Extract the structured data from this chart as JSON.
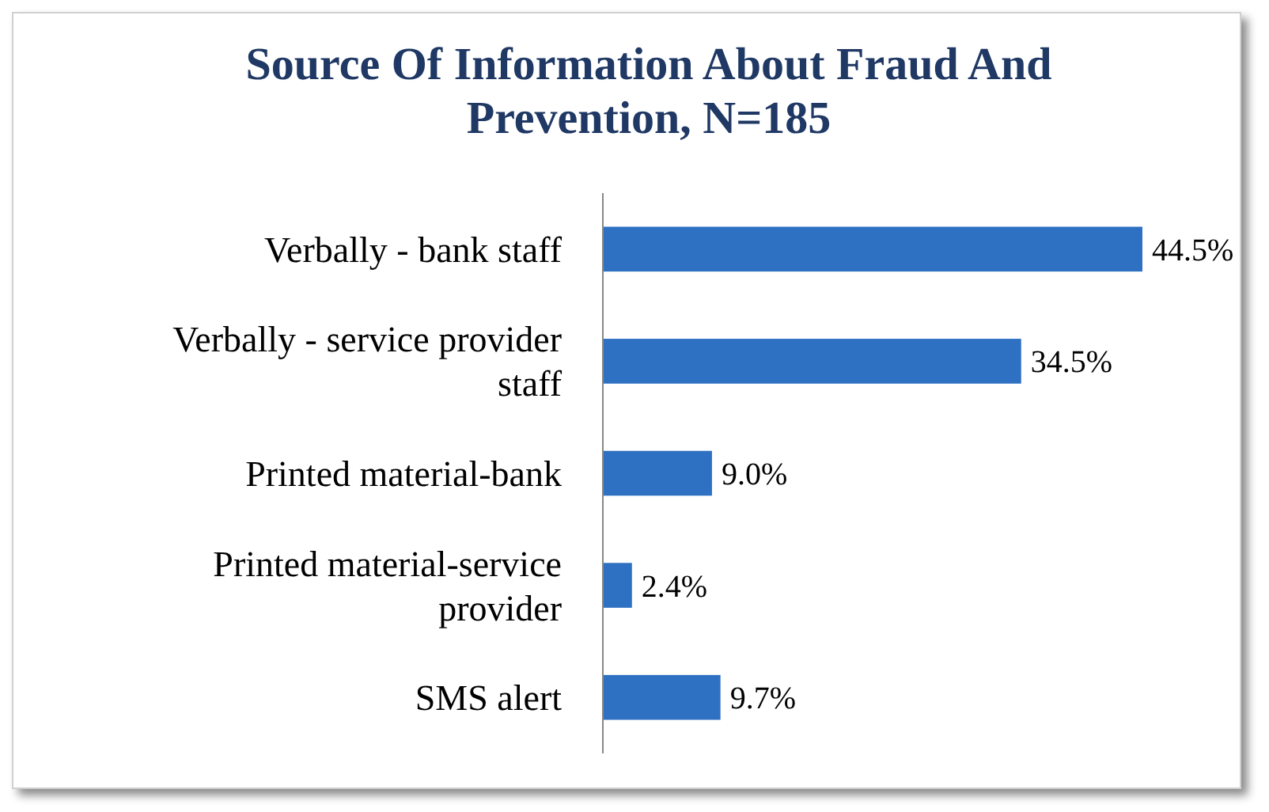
{
  "chart_data": {
    "type": "bar",
    "orientation": "horizontal",
    "title": "Source Of Information About Fraud And Prevention, N=185",
    "categories": [
      "Verbally - bank staff",
      "Verbally - service provider staff",
      "Printed material-bank",
      "Printed material-service provider",
      "SMS alert"
    ],
    "values": [
      44.5,
      34.5,
      9.0,
      2.4,
      9.7
    ],
    "value_labels": [
      "44.5%",
      "34.5%",
      "9.0%",
      "2.4%",
      "9.7%"
    ],
    "color": "#2e70c2"
  }
}
